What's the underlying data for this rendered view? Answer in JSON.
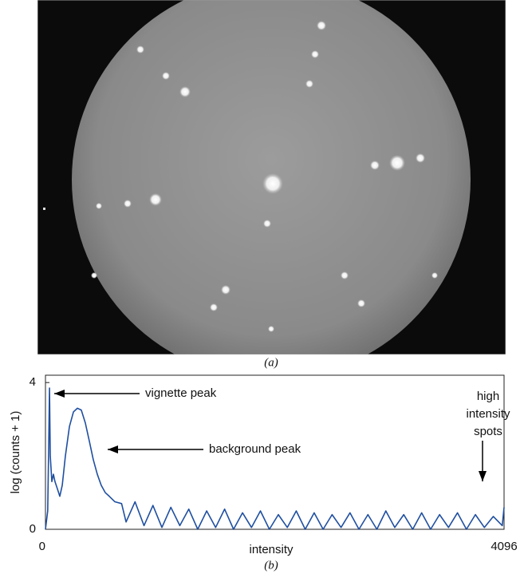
{
  "figure": {
    "panel_label": "(a)"
  },
  "chart_data": {
    "type": "line",
    "panel_label": "(b)",
    "x_label": "intensity",
    "y_label": "log (counts + 1)",
    "xlim": [
      0,
      4096
    ],
    "xticks": [
      0,
      4096
    ],
    "ylim": [
      0,
      4.2
    ],
    "yticks": [
      0,
      4
    ],
    "x": [
      0,
      20,
      30,
      36,
      43,
      57,
      71,
      85,
      107,
      128,
      150,
      178,
      214,
      250,
      285,
      320,
      356,
      392,
      427,
      463,
      498,
      534,
      570,
      620,
      680,
      720,
      800,
      880,
      960,
      1040,
      1120,
      1200,
      1280,
      1360,
      1440,
      1520,
      1600,
      1680,
      1760,
      1840,
      1920,
      2000,
      2080,
      2160,
      2240,
      2320,
      2400,
      2480,
      2560,
      2640,
      2720,
      2800,
      2880,
      2960,
      3040,
      3120,
      3200,
      3280,
      3360,
      3440,
      3520,
      3600,
      3680,
      3760,
      3840,
      3920,
      4000,
      4080,
      4096
    ],
    "series": [
      {
        "color": "#1f4fa0",
        "values": [
          0,
          0.5,
          2.5,
          3.85,
          2.0,
          1.3,
          1.5,
          1.3,
          1.1,
          0.9,
          1.2,
          2.0,
          2.8,
          3.2,
          3.3,
          3.25,
          2.9,
          2.4,
          1.9,
          1.5,
          1.2,
          1.0,
          0.9,
          0.75,
          0.7,
          0.2,
          0.75,
          0.1,
          0.65,
          0.05,
          0.6,
          0.1,
          0.55,
          0,
          0.5,
          0.05,
          0.55,
          0,
          0.45,
          0.05,
          0.5,
          0,
          0.4,
          0.05,
          0.5,
          0,
          0.45,
          0,
          0.4,
          0.05,
          0.45,
          0,
          0.4,
          0,
          0.5,
          0.05,
          0.4,
          0,
          0.45,
          0,
          0.4,
          0.05,
          0.45,
          0,
          0.4,
          0.05,
          0.35,
          0.1,
          0.6
        ]
      }
    ],
    "annotations": [
      {
        "text": [
          "vignette peak"
        ]
      },
      {
        "text": [
          "background peak"
        ]
      },
      {
        "text": [
          "high",
          "intensity",
          "spots"
        ]
      }
    ]
  }
}
